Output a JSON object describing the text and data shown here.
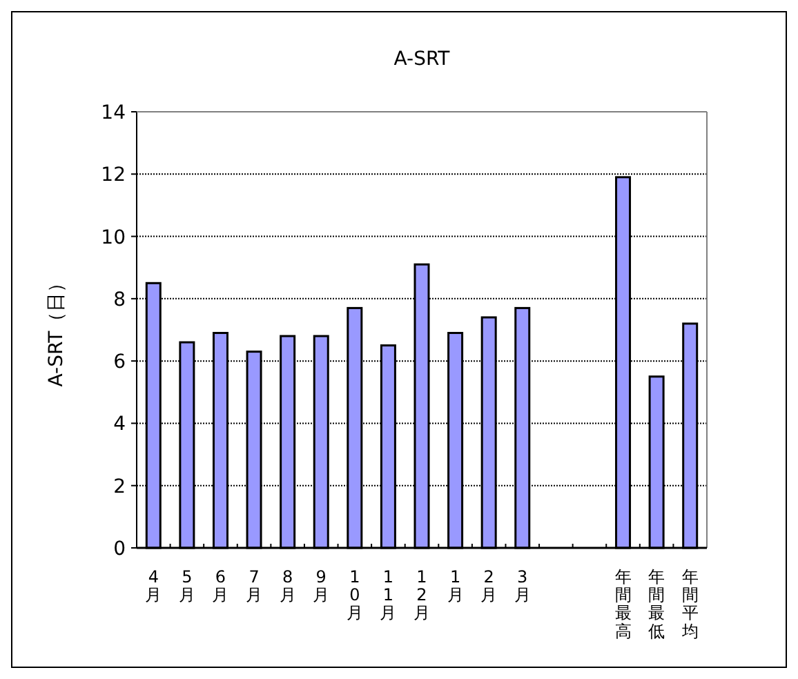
{
  "chart_data": {
    "type": "bar",
    "title": "A-SRT",
    "ylabel": "A-SRT（日）",
    "categories": [
      "4月",
      "5月",
      "6月",
      "7月",
      "8月",
      "9月",
      "10月",
      "11月",
      "12月",
      "1月",
      "2月",
      "3月",
      null,
      null,
      "年間最高",
      "年間最低",
      "年間平均"
    ],
    "values": [
      8.5,
      6.6,
      6.9,
      6.3,
      6.8,
      6.8,
      7.7,
      6.5,
      9.1,
      6.9,
      7.4,
      7.7,
      null,
      null,
      11.9,
      5.5,
      7.2
    ],
    "color": "#9999ff",
    "ylim": [
      0,
      14
    ],
    "yticks": [
      0,
      2,
      4,
      6,
      8,
      10,
      12,
      14
    ],
    "grid": "y"
  }
}
